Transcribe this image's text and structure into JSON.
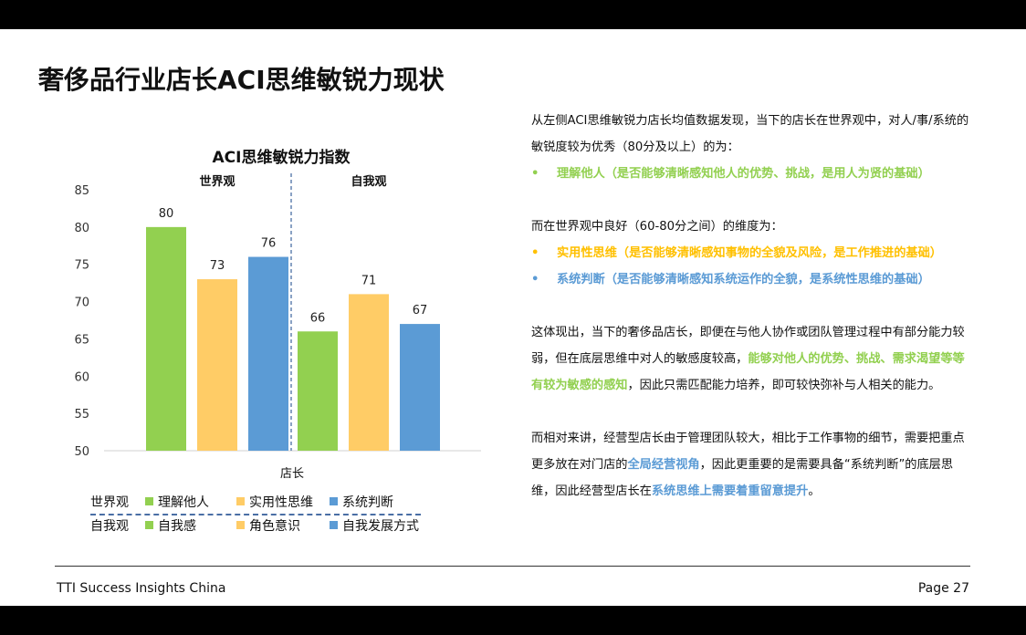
{
  "title": "奢侈品行业店长ACI思维敏锐力现状",
  "chart_data": {
    "type": "bar",
    "title": "ACI思维敏锐力指数",
    "xlabel": "店长",
    "ylim": [
      50,
      85
    ],
    "yticks": [
      50,
      55,
      60,
      65,
      70,
      75,
      80,
      85
    ],
    "groups": [
      {
        "label": "世界观",
        "bars": [
          {
            "name": "理解他人",
            "value": 80,
            "color": "#92d050"
          },
          {
            "name": "实用性思维",
            "value": 73,
            "color": "#ffcc66"
          },
          {
            "name": "系统判断",
            "value": 76,
            "color": "#5b9bd5"
          }
        ]
      },
      {
        "label": "自我观",
        "bars": [
          {
            "name": "自我感",
            "value": 66,
            "color": "#92d050"
          },
          {
            "name": "角色意识",
            "value": 71,
            "color": "#ffcc66"
          },
          {
            "name": "自我发展方式",
            "value": 67,
            "color": "#5b9bd5"
          }
        ]
      }
    ]
  },
  "legend": {
    "rows": [
      {
        "label": "世界观",
        "items": [
          {
            "name": "理解他人",
            "color": "#92d050"
          },
          {
            "name": "实用性思维",
            "color": "#ffcc66"
          },
          {
            "name": "系统判断",
            "color": "#5b9bd5"
          }
        ]
      },
      {
        "label": "自我观",
        "items": [
          {
            "name": "自我感",
            "color": "#92d050"
          },
          {
            "name": "角色意识",
            "color": "#ffcc66"
          },
          {
            "name": "自我发展方式",
            "color": "#5b9bd5"
          }
        ]
      }
    ]
  },
  "text": {
    "p1": "从左侧ACI思维敏锐力店长均值数据发现，当下的店长在世界观中，对人/事/系统的敏锐度较为优秀（80分及以上）的为：",
    "b1": "理解他人（是否能够清晰感知他人的优势、挑战，是用人为贤的基础）",
    "p2": "而在世界观中良好（60-80分之间）的维度为：",
    "b2": "实用性思维（是否能够清晰感知事物的全貌及风险，是工作推进的基础）",
    "b3": "系统判断（是否能够清晰感知系统运作的全貌，是系统性思维的基础）",
    "p3_a": "这体现出，当下的奢侈品店长，即便在与他人协作或团队管理过程中有部分能力较弱，但在底层思维中对人的敏感度较高，",
    "p3_b": "能够对他人的优势、挑战、需求渴望等等有较为敏感的感知",
    "p3_c": "，因此只需匹配能力培养，即可较快弥补与人相关的能力。",
    "p4_a": "而相对来讲，经营型店长由于管理团队较大，相比于工作事物的细节，需要把重点更多放在对门店的",
    "p4_b": "全局经营视角",
    "p4_c": "，因此更重要的是需要具备“系统判断”的底层思维，因此经营型店长在",
    "p4_d": "系统思维上需要着重留意提升",
    "p4_e": "。",
    "bullet_symbol": "•"
  },
  "footer": {
    "left": "TTI Success Insights China",
    "right": "Page 27"
  }
}
